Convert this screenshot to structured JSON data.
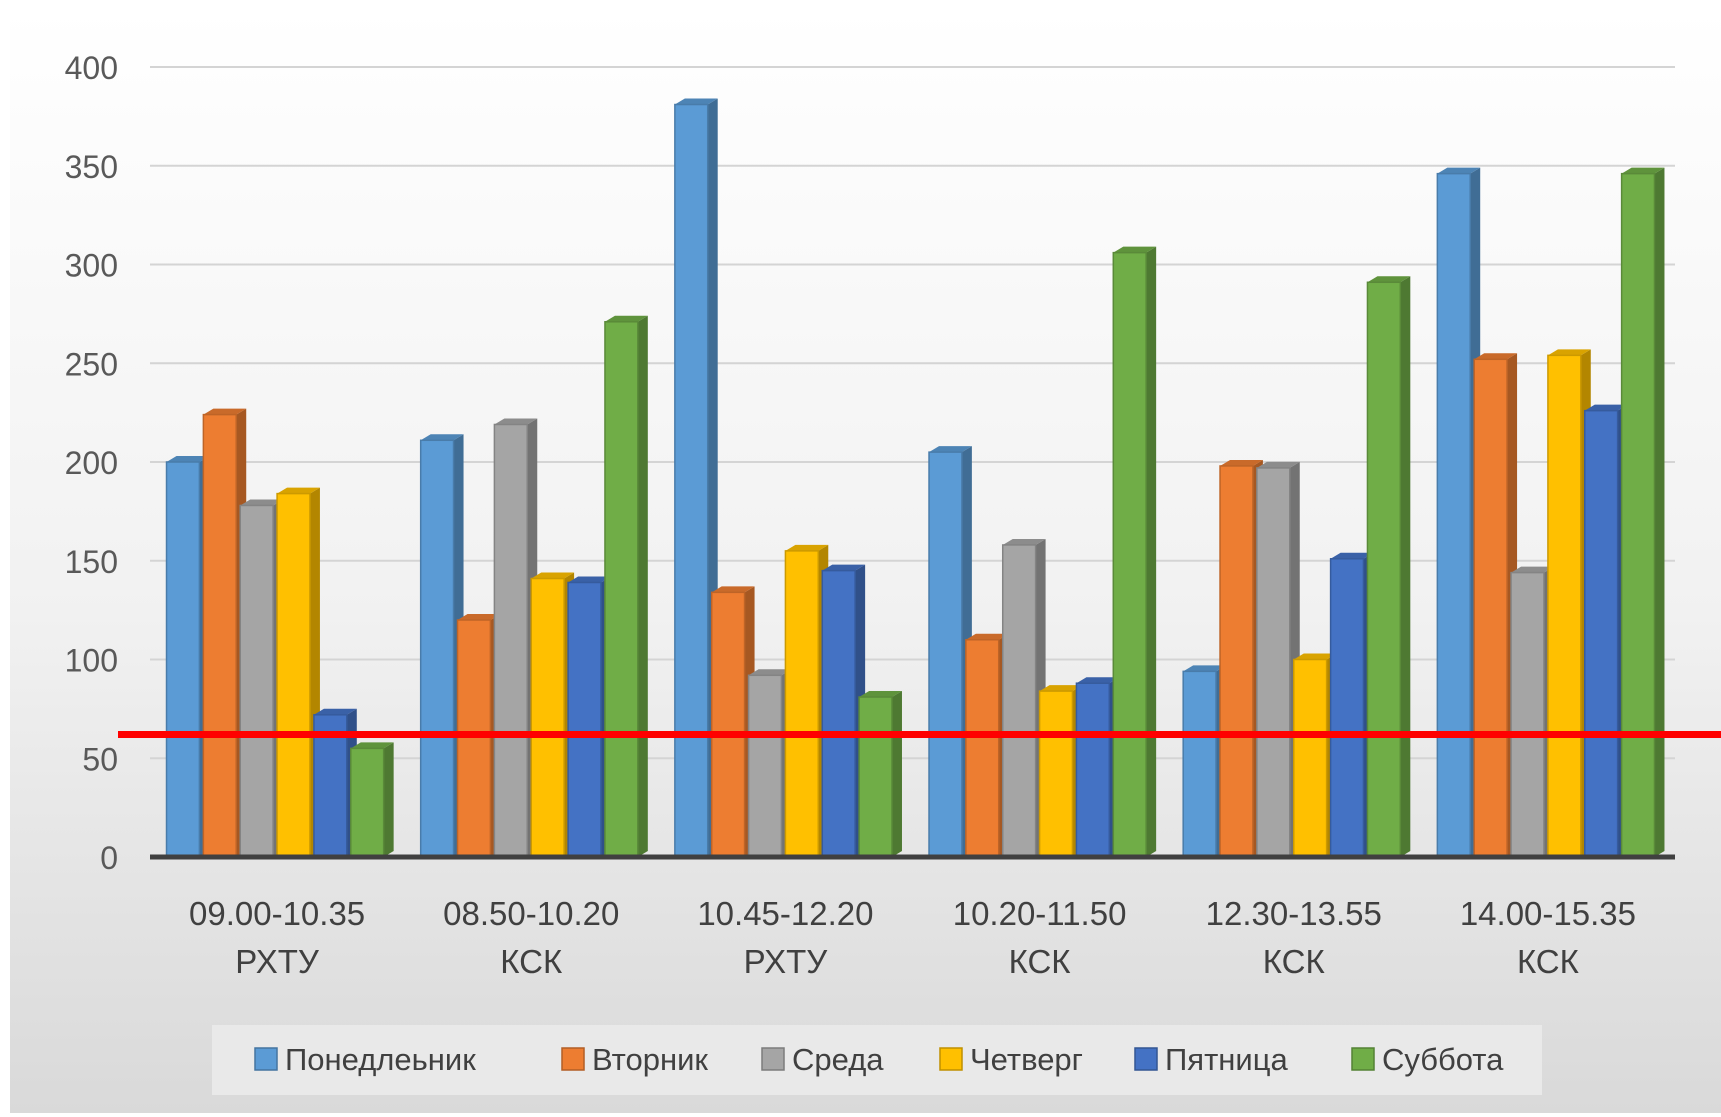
{
  "chart_data": {
    "type": "bar",
    "title": "",
    "xlabel": "",
    "ylabel": "",
    "ylim": [
      0,
      400
    ],
    "yticks": [
      0,
      50,
      100,
      150,
      200,
      250,
      300,
      350,
      400
    ],
    "grid": true,
    "legend_position": "bottom",
    "categories": [
      [
        "09.00-10.35",
        "РХТУ"
      ],
      [
        "08.50-10.20",
        "КСК"
      ],
      [
        "10.45-12.20",
        "РХТУ"
      ],
      [
        "10.20-11.50",
        "КСК"
      ],
      [
        "12.30-13.55",
        "КСК"
      ],
      [
        "14.00-15.35",
        "КСК"
      ]
    ],
    "series": [
      {
        "name": "Понедлеьник",
        "color": "#5B9BD5",
        "values": [
          200,
          211,
          381,
          205,
          94,
          346
        ]
      },
      {
        "name": "Вторник",
        "color": "#ED7D31",
        "values": [
          224,
          120,
          134,
          110,
          198,
          252
        ]
      },
      {
        "name": "Среда",
        "color": "#A5A5A5",
        "values": [
          178,
          219,
          92,
          158,
          197,
          144
        ]
      },
      {
        "name": "Четверг",
        "color": "#FFC000",
        "values": [
          184,
          141,
          155,
          84,
          100,
          254
        ]
      },
      {
        "name": "Пятница",
        "color": "#4472C4",
        "values": [
          72,
          139,
          145,
          88,
          151,
          226
        ]
      },
      {
        "name": "Суббота",
        "color": "#70AD47",
        "values": [
          55,
          271,
          81,
          306,
          291,
          346
        ]
      }
    ],
    "reference_line": {
      "value": 62,
      "color": "#FF0000"
    }
  }
}
